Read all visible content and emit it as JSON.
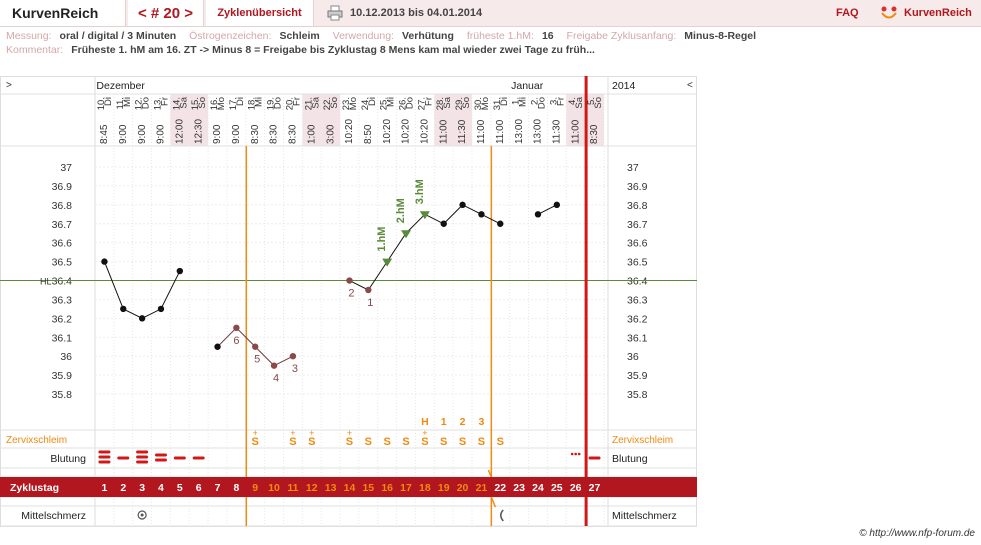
{
  "header": {
    "brand": "KurvenReich",
    "nav_label": "< # 20 >",
    "overview_label": "Zyklenübersicht",
    "date_range": "10.12.2013 bis 04.01.2014",
    "faq_label": "FAQ",
    "logo_label": "KurvenReich"
  },
  "meta": {
    "line1": [
      {
        "label": "Messung:",
        "value": "oral / digital / 3 Minuten"
      },
      {
        "label": "Östrogenzeichen:",
        "value": "Schleim"
      },
      {
        "label": "Verwendung:",
        "value": "Verhütung"
      },
      {
        "label": "früheste 1.hM:",
        "value": "16"
      },
      {
        "label": "Freigabe Zyklusanfang:",
        "value": "Minus-8-Regel"
      }
    ],
    "comment_label": "Kommentar:",
    "comment": "Früheste 1. hM am 16. ZT -> Minus 8 = Freigabe bis Zyklustag 8 Mens kam mal wieder zwei Tage zu früh..."
  },
  "chart": {
    "left_arrow": ">",
    "right_arrow": "<",
    "month_left": "Dezember",
    "month_right": "Januar",
    "year_label": "2014",
    "hl_label": "HL",
    "y_ticks": [
      "37",
      "36.9",
      "36.8",
      "36.7",
      "36.6",
      "36.5",
      "36.4",
      "36.3",
      "36.2",
      "36.1",
      "36",
      "35.9",
      "35.8"
    ],
    "coverline": 36.4,
    "days": [
      {
        "date": "10.",
        "wd": "Di",
        "time": "8:45",
        "cd": "1",
        "weekend": false
      },
      {
        "date": "11.",
        "wd": "Mi",
        "time": "9:00",
        "cd": "2",
        "weekend": false
      },
      {
        "date": "12.",
        "wd": "Do",
        "time": "9:00",
        "cd": "3",
        "weekend": false
      },
      {
        "date": "13.",
        "wd": "Fr",
        "time": "9:00",
        "cd": "4",
        "weekend": false
      },
      {
        "date": "14.",
        "wd": "Sa",
        "time": "12:00",
        "cd": "5",
        "weekend": true
      },
      {
        "date": "15.",
        "wd": "So",
        "time": "12:30",
        "cd": "6",
        "weekend": true
      },
      {
        "date": "16.",
        "wd": "Mo",
        "time": "9:00",
        "cd": "7",
        "weekend": false
      },
      {
        "date": "17.",
        "wd": "Di",
        "time": "9:00",
        "cd": "8",
        "weekend": false
      },
      {
        "date": "18.",
        "wd": "Mi",
        "time": "8:30",
        "cd": "9",
        "weekend": false
      },
      {
        "date": "19.",
        "wd": "Do",
        "time": "8:30",
        "cd": "10",
        "weekend": false
      },
      {
        "date": "20.",
        "wd": "Fr",
        "time": "8:30",
        "cd": "11",
        "weekend": false
      },
      {
        "date": "21.",
        "wd": "Sa",
        "time": "1:00",
        "cd": "12",
        "weekend": true
      },
      {
        "date": "22.",
        "wd": "So",
        "time": "3:00",
        "cd": "13",
        "weekend": true
      },
      {
        "date": "23.",
        "wd": "Mo",
        "time": "10:20",
        "cd": "14",
        "weekend": false
      },
      {
        "date": "24.",
        "wd": "Di",
        "time": "8:50",
        "cd": "15",
        "weekend": false
      },
      {
        "date": "25.",
        "wd": "Mi",
        "time": "10:20",
        "cd": "16",
        "weekend": false
      },
      {
        "date": "26.",
        "wd": "Do",
        "time": "10:20",
        "cd": "17",
        "weekend": false
      },
      {
        "date": "27.",
        "wd": "Fr",
        "time": "10:20",
        "cd": "18",
        "weekend": false
      },
      {
        "date": "28.",
        "wd": "Sa",
        "time": "11:00",
        "cd": "19",
        "weekend": true
      },
      {
        "date": "29.",
        "wd": "So",
        "time": "11:30",
        "cd": "20",
        "weekend": true
      },
      {
        "date": "30.",
        "wd": "Mo",
        "time": "11:00",
        "cd": "21",
        "weekend": false
      },
      {
        "date": "31.",
        "wd": "Di",
        "time": "11:00",
        "cd": "22",
        "weekend": false
      },
      {
        "date": "1.",
        "wd": "Mi",
        "time": "13:00",
        "cd": "23",
        "weekend": false
      },
      {
        "date": "2.",
        "wd": "Do",
        "time": "13:00",
        "cd": "24",
        "weekend": false
      },
      {
        "date": "3.",
        "wd": "Fr",
        "time": "11:30",
        "cd": "25",
        "weekend": false
      },
      {
        "date": "4.",
        "wd": "Sa",
        "time": "11:00",
        "cd": "26",
        "weekend": true
      },
      {
        "date": "5.",
        "wd": "So",
        "time": "8:30",
        "cd": "27",
        "weekend": true
      }
    ],
    "temps": [
      36.5,
      36.25,
      36.2,
      36.25,
      36.45,
      null,
      36.05,
      36.15,
      36.05,
      35.95,
      36.0,
      null,
      null,
      36.4,
      36.35,
      36.5,
      36.65,
      36.75,
      36.7,
      36.8,
      36.75,
      36.7,
      null,
      36.75,
      36.8,
      null,
      null
    ],
    "segments": [
      [
        0,
        4
      ],
      [
        6,
        10
      ],
      [
        13,
        21
      ],
      [
        23,
        24
      ]
    ],
    "point_labels": [
      {
        "day": 7,
        "text": "6"
      },
      {
        "day": 8,
        "text": "5"
      },
      {
        "day": 9,
        "text": "4"
      },
      {
        "day": 10,
        "text": "3"
      },
      {
        "day": 13,
        "text": "2"
      },
      {
        "day": 14,
        "text": "1"
      }
    ],
    "hm_markers": [
      {
        "day": 15,
        "text": "1.hM"
      },
      {
        "day": 16,
        "text": "2.hM"
      },
      {
        "day": 17,
        "text": "3.hM"
      }
    ],
    "peak_row": [
      {
        "day": 17,
        "text": "H"
      },
      {
        "day": 18,
        "text": "1"
      },
      {
        "day": 19,
        "text": "2"
      },
      {
        "day": 20,
        "text": "3"
      }
    ],
    "zervix_label": "Zervixschleim",
    "zervix": [
      {
        "day": 8,
        "text": "S",
        "plus": true
      },
      {
        "day": 10,
        "text": "S",
        "plus": true
      },
      {
        "day": 11,
        "text": "S",
        "plus": true
      },
      {
        "day": 13,
        "text": "S",
        "plus": true
      },
      {
        "day": 14,
        "text": "S"
      },
      {
        "day": 15,
        "text": "S"
      },
      {
        "day": 16,
        "text": "S"
      },
      {
        "day": 17,
        "text": "S",
        "plus": true
      },
      {
        "day": 18,
        "text": "S"
      },
      {
        "day": 19,
        "text": "S"
      },
      {
        "day": 20,
        "text": "S"
      },
      {
        "day": 21,
        "text": "S"
      }
    ],
    "blutung_label": "Blutung",
    "blutung": [
      3,
      1,
      3,
      2,
      1,
      1,
      0,
      0,
      0,
      0,
      0,
      0,
      0,
      0,
      0,
      0,
      0,
      0,
      0,
      0,
      0,
      0,
      0,
      0,
      0,
      0.5,
      1
    ],
    "zyklustag_label": "Zyklustag",
    "mittelschmerz_label": "Mittelschmerz",
    "orange_lines": [
      8,
      21
    ],
    "red_line": 26,
    "colors": {
      "accent": "#b2161e",
      "orange": "#f08a10",
      "green": "#5a8a3a",
      "temp_pre": "#8a4a4a",
      "weekend": "#f3e3e6"
    }
  },
  "copyright": "© http://www.nfp-forum.de"
}
